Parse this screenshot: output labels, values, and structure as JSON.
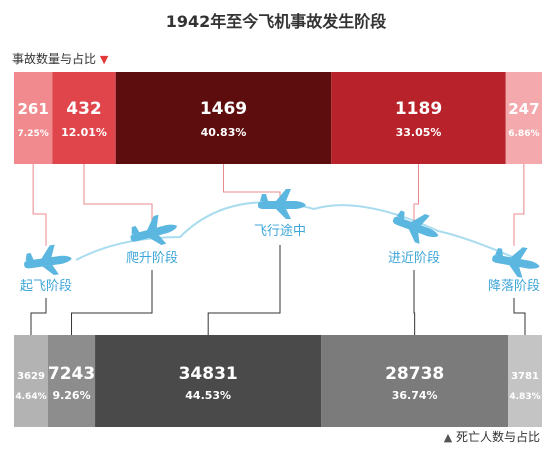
{
  "chart_data": {
    "type": "bar",
    "title": "1942年至今飞机事故发生阶段",
    "phases": [
      "起飞阶段",
      "爬升阶段",
      "飞行途中",
      "进近阶段",
      "降落阶段"
    ],
    "accidents": {
      "label": "事故数量与占比",
      "values": [
        261,
        432,
        1469,
        1189,
        247
      ],
      "percents": [
        "7.25%",
        "12.01%",
        "40.83%",
        "33.05%",
        "6.86%"
      ],
      "colors": [
        "#f08a8e",
        "#e0454b",
        "#5e0d0f",
        "#b8222a",
        "#f4a9ac"
      ]
    },
    "deaths": {
      "label": "死亡人数与占比",
      "values": [
        3629,
        7243,
        34831,
        28738,
        3781
      ],
      "percents": [
        "4.64%",
        "9.26%",
        "44.53%",
        "36.74%",
        "4.83%"
      ],
      "colors": [
        "#b3b3b3",
        "#8d8d8d",
        "#4a4a4a",
        "#7b7b7b",
        "#c4c4c4"
      ]
    }
  },
  "legend_markers": {
    "top": "▼",
    "bottom": "▲"
  },
  "colors": {
    "plane": "#5bb7df",
    "path": "#a9dcef",
    "label": "#3ea6d8",
    "connector_top": "#e8888c",
    "connector_bottom": "#333333"
  }
}
